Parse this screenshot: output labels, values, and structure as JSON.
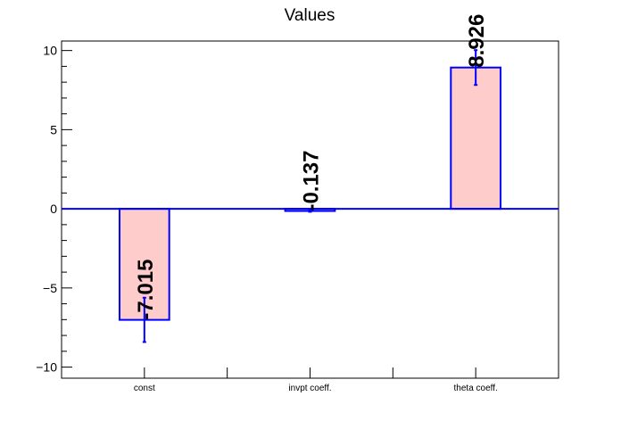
{
  "chart_data": {
    "type": "bar",
    "title": "Values",
    "xlabel": "",
    "ylabel": "",
    "categories": [
      "const",
      "invpt coeff.",
      "theta coeff."
    ],
    "values": [
      -7.015,
      -0.137,
      8.926
    ],
    "value_labels": [
      "-7.015",
      "-0.137",
      "8.926"
    ],
    "errors": [
      1.4,
      0.05,
      1.1
    ],
    "ylim": [
      -10.7,
      10.6
    ],
    "yticks": [
      -10,
      -5,
      0,
      5,
      10
    ],
    "ytick_labels": [
      "−10",
      "−5",
      "0",
      "5",
      "10"
    ],
    "colors": {
      "bar_fill": "#ffcccc",
      "bar_edge": "#0000ff",
      "zero_line": "#0000ff",
      "error_bar": "#0000ff"
    },
    "grid": false,
    "legend": "none"
  }
}
